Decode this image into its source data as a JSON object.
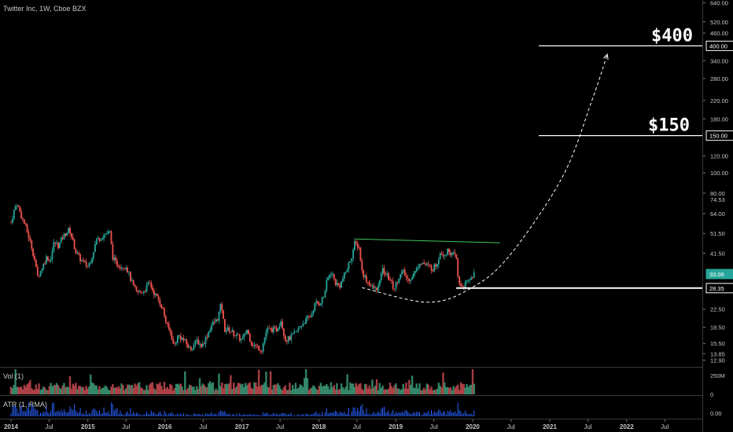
{
  "header": {
    "title": "Twitter Inc, 1W, Cboe BZX"
  },
  "chart_data": {
    "type": "candlestick",
    "symbol": "Twitter Inc",
    "interval": "1W",
    "exchange": "Cboe BZX",
    "y_scale": "log",
    "ylim": [
      12.0,
      660.0
    ],
    "x_range": [
      "2014-01-01",
      "2023-01-10"
    ],
    "price_ticks": [
      "640.00",
      "520.00",
      "460.00",
      "400.00",
      "340.00",
      "280.00",
      "220.00",
      "180.00",
      "150.00",
      "120.00",
      "100.00",
      "80.00",
      "64.00",
      "51.50",
      "41.50",
      "33.06",
      "28.35",
      "22.50",
      "18.50",
      "15.50",
      "13.85",
      "12.90"
    ],
    "price_tick_values": [
      640,
      520,
      460,
      400,
      340,
      280,
      220,
      180,
      150,
      120,
      100,
      80,
      64,
      51.5,
      41.5,
      33.06,
      28.35,
      22.5,
      18.5,
      15.5,
      13.85,
      12.9
    ],
    "top_tick": {
      "label": "74.53",
      "value": 74.53
    },
    "last_price": {
      "label": "33.06",
      "value": 33.06
    },
    "support_label": {
      "label": "28.35",
      "value": 28.35
    },
    "target_400_label": {
      "label": "400.00",
      "value": 400
    },
    "target_150_label": {
      "label": "150.00",
      "value": 150
    },
    "time_ticks": [
      {
        "label": "2014",
        "date": "2014-01-01"
      },
      {
        "label": "Jul",
        "date": "2014-07-01"
      },
      {
        "label": "2015",
        "date": "2015-01-01"
      },
      {
        "label": "Jul",
        "date": "2015-07-01"
      },
      {
        "label": "2016",
        "date": "2016-01-01"
      },
      {
        "label": "Jul",
        "date": "2016-07-01"
      },
      {
        "label": "2017",
        "date": "2017-01-01"
      },
      {
        "label": "Jul",
        "date": "2017-07-01"
      },
      {
        "label": "2018",
        "date": "2018-01-01"
      },
      {
        "label": "Jul",
        "date": "2018-07-01"
      },
      {
        "label": "2019",
        "date": "2019-01-01"
      },
      {
        "label": "Jul",
        "date": "2019-07-01"
      },
      {
        "label": "2020",
        "date": "2020-01-01"
      },
      {
        "label": "Jul",
        "date": "2020-07-01"
      },
      {
        "label": "2021",
        "date": "2021-01-01"
      },
      {
        "label": "Jul",
        "date": "2021-07-01"
      },
      {
        "label": "2022",
        "date": "2022-01-01"
      },
      {
        "label": "Jul",
        "date": "2022-07-01"
      }
    ],
    "price_path": [
      {
        "date": "2014-01-01",
        "price": 58
      },
      {
        "date": "2014-01-15",
        "price": 66
      },
      {
        "date": "2014-01-28",
        "price": 72
      },
      {
        "date": "2014-02-10",
        "price": 66
      },
      {
        "date": "2014-02-25",
        "price": 60
      },
      {
        "date": "2014-03-10",
        "price": 56
      },
      {
        "date": "2014-03-25",
        "price": 50
      },
      {
        "date": "2014-04-10",
        "price": 44
      },
      {
        "date": "2014-04-25",
        "price": 38
      },
      {
        "date": "2014-05-05",
        "price": 32
      },
      {
        "date": "2014-05-20",
        "price": 34
      },
      {
        "date": "2014-06-05",
        "price": 37
      },
      {
        "date": "2014-06-20",
        "price": 40
      },
      {
        "date": "2014-07-05",
        "price": 38
      },
      {
        "date": "2014-07-25",
        "price": 47
      },
      {
        "date": "2014-08-15",
        "price": 45
      },
      {
        "date": "2014-09-01",
        "price": 49
      },
      {
        "date": "2014-09-20",
        "price": 52
      },
      {
        "date": "2014-10-05",
        "price": 54
      },
      {
        "date": "2014-10-20",
        "price": 48
      },
      {
        "date": "2014-11-05",
        "price": 42
      },
      {
        "date": "2014-11-25",
        "price": 39
      },
      {
        "date": "2014-12-15",
        "price": 37
      },
      {
        "date": "2015-01-01",
        "price": 36
      },
      {
        "date": "2015-01-20",
        "price": 40
      },
      {
        "date": "2015-02-10",
        "price": 48
      },
      {
        "date": "2015-03-01",
        "price": 49
      },
      {
        "date": "2015-03-20",
        "price": 51
      },
      {
        "date": "2015-04-15",
        "price": 52
      },
      {
        "date": "2015-04-28",
        "price": 40
      },
      {
        "date": "2015-05-15",
        "price": 37
      },
      {
        "date": "2015-06-10",
        "price": 36
      },
      {
        "date": "2015-07-01",
        "price": 36
      },
      {
        "date": "2015-07-29",
        "price": 30
      },
      {
        "date": "2015-08-20",
        "price": 27
      },
      {
        "date": "2015-09-10",
        "price": 27
      },
      {
        "date": "2015-09-30",
        "price": 28
      },
      {
        "date": "2015-10-20",
        "price": 30
      },
      {
        "date": "2015-11-10",
        "price": 27
      },
      {
        "date": "2015-12-01",
        "price": 25
      },
      {
        "date": "2015-12-20",
        "price": 23
      },
      {
        "date": "2016-01-10",
        "price": 19
      },
      {
        "date": "2016-02-01",
        "price": 17
      },
      {
        "date": "2016-02-12",
        "price": 15
      },
      {
        "date": "2016-03-05",
        "price": 17
      },
      {
        "date": "2016-04-01",
        "price": 16
      },
      {
        "date": "2016-05-01",
        "price": 14.5
      },
      {
        "date": "2016-06-01",
        "price": 16
      },
      {
        "date": "2016-06-25",
        "price": 15
      },
      {
        "date": "2016-07-20",
        "price": 17
      },
      {
        "date": "2016-08-10",
        "price": 19
      },
      {
        "date": "2016-09-05",
        "price": 20
      },
      {
        "date": "2016-09-25",
        "price": 24
      },
      {
        "date": "2016-10-10",
        "price": 18
      },
      {
        "date": "2016-11-01",
        "price": 18
      },
      {
        "date": "2016-12-01",
        "price": 17
      },
      {
        "date": "2017-01-01",
        "price": 16
      },
      {
        "date": "2017-01-25",
        "price": 18
      },
      {
        "date": "2017-02-15",
        "price": 15.5
      },
      {
        "date": "2017-03-10",
        "price": 15
      },
      {
        "date": "2017-04-05",
        "price": 14.5
      },
      {
        "date": "2017-04-28",
        "price": 18
      },
      {
        "date": "2017-05-20",
        "price": 18
      },
      {
        "date": "2017-06-15",
        "price": 18
      },
      {
        "date": "2017-07-05",
        "price": 20
      },
      {
        "date": "2017-07-27",
        "price": 16
      },
      {
        "date": "2017-08-20",
        "price": 16.5
      },
      {
        "date": "2017-09-15",
        "price": 17.5
      },
      {
        "date": "2017-10-10",
        "price": 19
      },
      {
        "date": "2017-11-01",
        "price": 20
      },
      {
        "date": "2017-11-25",
        "price": 21
      },
      {
        "date": "2017-12-15",
        "price": 24
      },
      {
        "date": "2018-01-05",
        "price": 24
      },
      {
        "date": "2018-01-25",
        "price": 26
      },
      {
        "date": "2018-02-10",
        "price": 31
      },
      {
        "date": "2018-03-01",
        "price": 34
      },
      {
        "date": "2018-03-20",
        "price": 30
      },
      {
        "date": "2018-04-10",
        "price": 29
      },
      {
        "date": "2018-04-28",
        "price": 32
      },
      {
        "date": "2018-05-15",
        "price": 35
      },
      {
        "date": "2018-06-05",
        "price": 40
      },
      {
        "date": "2018-06-20",
        "price": 46
      },
      {
        "date": "2018-07-10",
        "price": 45
      },
      {
        "date": "2018-07-25",
        "price": 34
      },
      {
        "date": "2018-08-15",
        "price": 31
      },
      {
        "date": "2018-09-05",
        "price": 29
      },
      {
        "date": "2018-09-25",
        "price": 28
      },
      {
        "date": "2018-10-15",
        "price": 29
      },
      {
        "date": "2018-10-26",
        "price": 35
      },
      {
        "date": "2018-11-15",
        "price": 33
      },
      {
        "date": "2018-12-05",
        "price": 31
      },
      {
        "date": "2018-12-24",
        "price": 28
      },
      {
        "date": "2019-01-15",
        "price": 32
      },
      {
        "date": "2019-02-05",
        "price": 34
      },
      {
        "date": "2019-02-25",
        "price": 31
      },
      {
        "date": "2019-03-15",
        "price": 32
      },
      {
        "date": "2019-04-05",
        "price": 34
      },
      {
        "date": "2019-04-25",
        "price": 38
      },
      {
        "date": "2019-05-15",
        "price": 37
      },
      {
        "date": "2019-06-05",
        "price": 36
      },
      {
        "date": "2019-06-25",
        "price": 35
      },
      {
        "date": "2019-07-15",
        "price": 37
      },
      {
        "date": "2019-07-30",
        "price": 42
      },
      {
        "date": "2019-08-20",
        "price": 41
      },
      {
        "date": "2019-09-10",
        "price": 43
      },
      {
        "date": "2019-09-25",
        "price": 41
      },
      {
        "date": "2019-10-15",
        "price": 40
      },
      {
        "date": "2019-10-25",
        "price": 30
      },
      {
        "date": "2019-11-15",
        "price": 29
      },
      {
        "date": "2019-12-05",
        "price": 30
      },
      {
        "date": "2019-12-26",
        "price": 32
      },
      {
        "date": "2020-01-08",
        "price": 33
      }
    ],
    "volume_axis_ticks": [
      "250M",
      "0"
    ],
    "volume_tick_values": [
      250,
      0
    ],
    "volume_unit": "M",
    "volume_ylim": [
      0,
      330
    ],
    "atr_axis_ticks": [
      "0.00"
    ],
    "atr_ylim": [
      0,
      12
    ],
    "atr_tick_value": 0,
    "colors": {
      "background": "#000000",
      "axis_text": "#c8c8c8",
      "up": "#26a69a",
      "down": "#ef5350",
      "volume_up": "#3b9a77",
      "volume_down": "#c2494f",
      "atr": "#2962ff",
      "trendline": "#3fc65a",
      "annotation": "#ffffff",
      "last_price_badge": "#26a69a",
      "pane_divider": "#3a3a3a"
    },
    "annotations": {
      "target_400_text": "$400",
      "target_150_text": "$150",
      "target_400": {
        "price": 400,
        "from_date": "2020-11-10"
      },
      "target_150": {
        "price": 150,
        "from_date": "2020-11-10"
      },
      "support": {
        "price": 28.35,
        "from_date": "2019-10-15"
      },
      "resistance": {
        "from": {
          "date": "2018-06-25",
          "price": 48.5
        },
        "to": {
          "date": "2020-05-10",
          "price": 46.5
        }
      },
      "cup_curve": [
        {
          "date": "2018-07-25",
          "price": 28.5
        },
        {
          "date": "2019-06-01",
          "price": 24.3
        },
        {
          "date": "2019-12-20",
          "price": 28.2
        },
        {
          "date": "2020-06-20",
          "price": 40
        },
        {
          "date": "2021-03-01",
          "price": 95
        },
        {
          "date": "2021-07-20",
          "price": 220
        },
        {
          "date": "2021-10-01",
          "price": 365
        }
      ]
    }
  },
  "panes": {
    "volume_title": "Vol (1)",
    "atr_title": "ATR (1, RMA)"
  }
}
